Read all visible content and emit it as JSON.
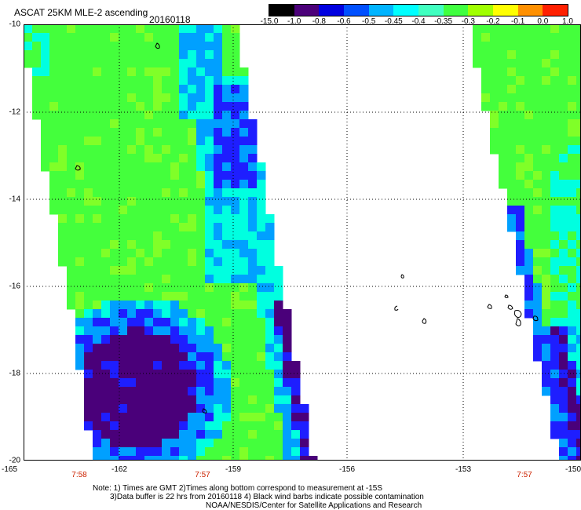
{
  "title": "ASCAT 25KM MLE-2 ascending",
  "date": "20160118",
  "colorbar": {
    "labels": [
      "-15.0",
      "-1.0",
      "-0.8",
      "-0.6",
      "-0.5",
      "-0.45",
      "-0.4",
      "-0.35",
      "-0.3",
      "-0.2",
      "-0.1",
      "0.0",
      "1.0"
    ],
    "colors": [
      "#000000",
      "#4b0079",
      "#0000e0",
      "#0050ff",
      "#00b4ff",
      "#00ffff",
      "#40ffc0",
      "#40ff40",
      "#a0ff00",
      "#ffff00",
      "#ff9000",
      "#ff2000"
    ]
  },
  "map": {
    "lon_range": [
      -165,
      -150
    ],
    "lat_range": [
      -20,
      -10
    ],
    "y_ticks": [
      "-10",
      "-12",
      "-14",
      "-16",
      "-18",
      "-20"
    ],
    "x_ticks": [
      "-165",
      "-162",
      "-159",
      "-156",
      "-153",
      "-150"
    ],
    "time_labels": [
      "7:58",
      "7:57",
      "7:57"
    ],
    "palette": {
      "deep_purple": "#4a007a",
      "blue": "#1e1eff",
      "light_blue": "#00a0ff",
      "cyan": "#00ffe0",
      "green": "#44ff3c",
      "lime": "#80ff28"
    }
  },
  "notes": [
    "Note: 1) Times are GMT 2)Times along bottom correspond to measurement at -15S",
    "3)Data buffer is 22 hrs from 20160118 4) Black wind barbs indicate possible contamination",
    "NOAA/NESDIS/Center for Satellite Applications and Research"
  ]
}
